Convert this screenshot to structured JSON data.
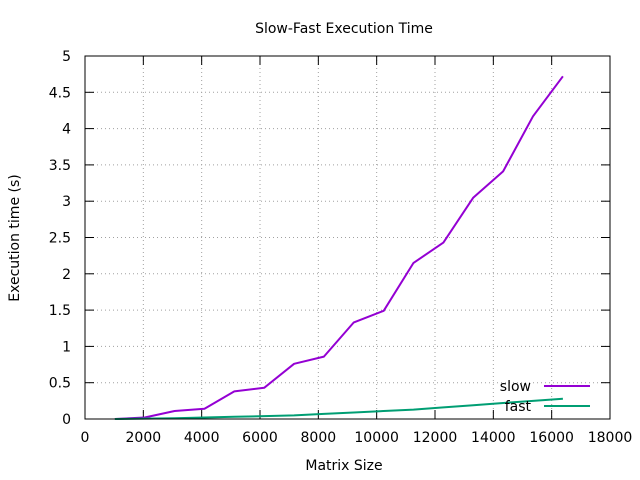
{
  "chart_data": {
    "type": "line",
    "title": "Slow-Fast Execution Time",
    "xlabel": "Matrix Size",
    "ylabel": "Execution time (s)",
    "xlim": [
      0,
      18000
    ],
    "ylim": [
      0,
      5
    ],
    "xticks": [
      0,
      2000,
      4000,
      6000,
      8000,
      10000,
      12000,
      14000,
      16000,
      18000
    ],
    "xtick_labels": [
      "0",
      "2000",
      "4000",
      "6000",
      "8000",
      "10000",
      "12000",
      "14000",
      "16000",
      "18000"
    ],
    "yticks": [
      0,
      0.5,
      1,
      1.5,
      2,
      2.5,
      3,
      3.5,
      4,
      4.5,
      5
    ],
    "ytick_labels": [
      "0",
      "0.5",
      "1",
      "1.5",
      "2",
      "2.5",
      "3",
      "3.5",
      "4",
      "4.5",
      "5"
    ],
    "grid": true,
    "legend_position": "bottom-right",
    "series": [
      {
        "name": "slow",
        "color": "#9400d3",
        "x": [
          1024,
          2048,
          3072,
          4096,
          5120,
          6144,
          7168,
          8192,
          9216,
          10240,
          11264,
          12288,
          13312,
          14336,
          15360,
          16384
        ],
        "y": [
          0.0,
          0.02,
          0.11,
          0.14,
          0.38,
          0.43,
          0.76,
          0.86,
          1.33,
          1.49,
          2.15,
          2.43,
          3.05,
          3.41,
          4.17,
          4.72
        ]
      },
      {
        "name": "fast",
        "color": "#009e73",
        "x": [
          1024,
          2048,
          3072,
          4096,
          5120,
          6144,
          7168,
          8192,
          9216,
          10240,
          11264,
          12288,
          13312,
          14336,
          15360,
          16384
        ],
        "y": [
          0.0,
          0.005,
          0.01,
          0.02,
          0.03,
          0.04,
          0.05,
          0.07,
          0.09,
          0.11,
          0.13,
          0.16,
          0.19,
          0.22,
          0.25,
          0.28
        ]
      }
    ]
  }
}
